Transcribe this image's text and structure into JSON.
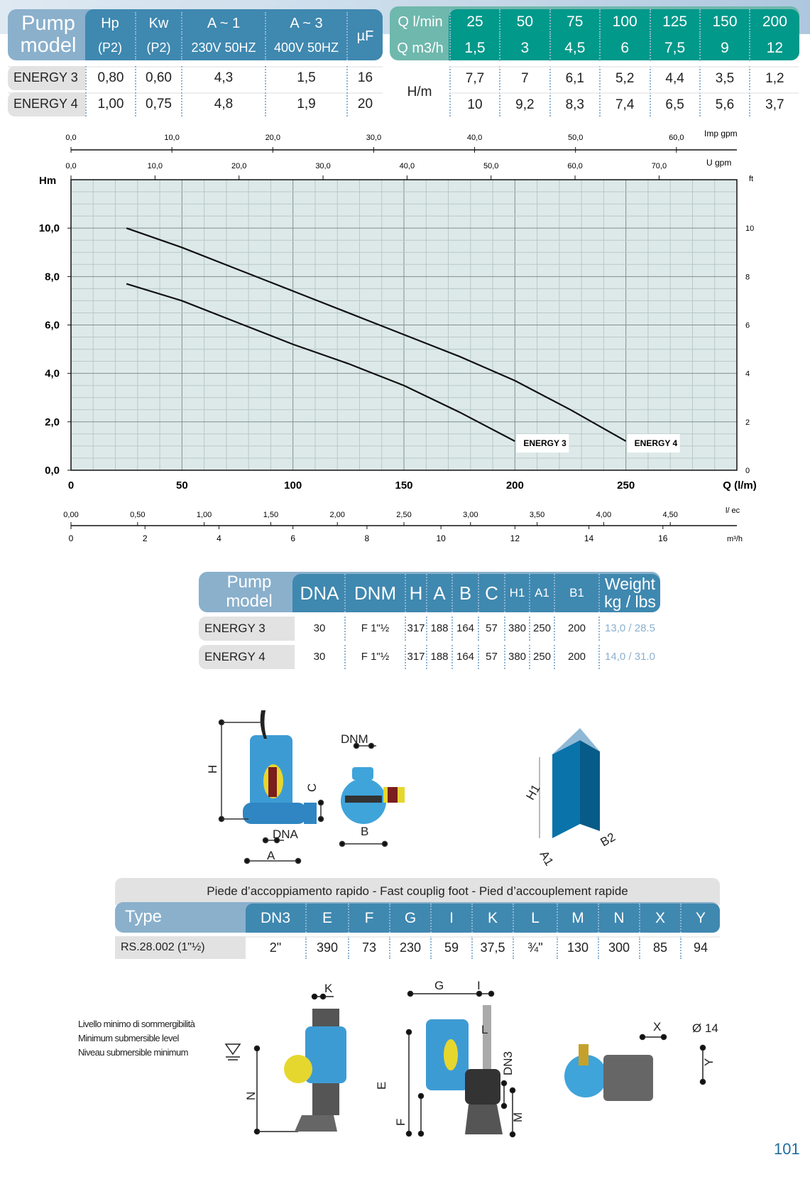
{
  "table1": {
    "header_model": "Pump model",
    "cols": [
      [
        "Hp",
        "(P2)"
      ],
      [
        "Kw",
        "(P2)"
      ],
      [
        "A ~ 1",
        "230V 50HZ"
      ],
      [
        "A ~ 3",
        "400V 50HZ"
      ],
      [
        "µF",
        ""
      ]
    ],
    "rows": [
      {
        "model": "ENERGY 3",
        "vals": [
          "0,80",
          "0,60",
          "4,3",
          "1,5",
          "16"
        ]
      },
      {
        "model": "ENERGY 4",
        "vals": [
          "1,00",
          "0,75",
          "4,8",
          "1,9",
          "20"
        ]
      }
    ]
  },
  "table2": {
    "q_lmin_label": "Q l/min",
    "q_m3h_label": "Q m3/h",
    "hm_label": "H/m",
    "q_lmin": [
      "25",
      "50",
      "75",
      "100",
      "125",
      "150",
      "200"
    ],
    "q_m3h": [
      "1,5",
      "3",
      "4,5",
      "6",
      "7,5",
      "9",
      "12"
    ],
    "rows": [
      [
        "7,7",
        "7",
        "6,1",
        "5,2",
        "4,4",
        "3,5",
        "1,2"
      ],
      [
        "10",
        "9,2",
        "8,3",
        "7,4",
        "6,5",
        "5,6",
        "3,7"
      ]
    ]
  },
  "chart_data": {
    "type": "line",
    "ylabel": "Hm",
    "xlabel": "Q (l/m)",
    "xlim": [
      0,
      300
    ],
    "ylim": [
      0,
      12
    ],
    "x_ticks": [
      "0",
      "50",
      "100",
      "150",
      "200",
      "250"
    ],
    "y_ticks": [
      "0,0",
      "2,0",
      "4,0",
      "6,0",
      "8,0",
      "10,0"
    ],
    "ft_label": "ft",
    "ft_ticks": [
      "0",
      "2",
      "4",
      "6",
      "8",
      "10"
    ],
    "imp_gpm": {
      "label": "Imp gpm",
      "ticks": [
        "0,0",
        "10,0",
        "20,0",
        "30,0",
        "40,0",
        "50,0",
        "60,0"
      ]
    },
    "us_gpm": {
      "label": "U  gpm",
      "ticks": [
        "0,0",
        "10,0",
        "20,0",
        "30,0",
        "40,0",
        "50,0",
        "60,0",
        "70,0"
      ]
    },
    "lsec": {
      "label": "l/ ec",
      "ticks": [
        "0,00",
        "0,50",
        "1,00",
        "1,50",
        "2,00",
        "2,50",
        "3,00",
        "3,50",
        "4,00",
        "4,50"
      ]
    },
    "m3h": {
      "label": "m³/h",
      "ticks": [
        "0",
        "2",
        "4",
        "6",
        "8",
        "10",
        "12",
        "14",
        "16"
      ]
    },
    "grid": true,
    "series": [
      {
        "name": "ENERGY 3",
        "x": [
          25,
          50,
          75,
          100,
          125,
          150,
          175,
          200
        ],
        "y": [
          7.7,
          7,
          6.1,
          5.2,
          4.4,
          3.5,
          2.4,
          1.2
        ]
      },
      {
        "name": "ENERGY 4",
        "x": [
          25,
          50,
          75,
          100,
          125,
          150,
          175,
          200,
          225,
          250
        ],
        "y": [
          10,
          9.2,
          8.3,
          7.4,
          6.5,
          5.6,
          4.7,
          3.7,
          2.5,
          1.2
        ]
      }
    ]
  },
  "table3": {
    "header_model": "Pump model",
    "cols": [
      "DNA",
      "DNM",
      "H",
      "A",
      "B",
      "C",
      "H1",
      "A1",
      "B1",
      "Weight kg / lbs"
    ],
    "rows": [
      {
        "model": "ENERGY 3",
        "vals": [
          "30",
          "F 1\"½",
          "317",
          "188",
          "164",
          "57",
          "380",
          "250",
          "200",
          "13,0 / 28.5"
        ]
      },
      {
        "model": "ENERGY 4",
        "vals": [
          "30",
          "F 1\"½",
          "317",
          "188",
          "164",
          "57",
          "380",
          "250",
          "200",
          "14,0 / 31.0"
        ]
      }
    ]
  },
  "drawing1": {
    "labels": [
      "H",
      "C",
      "DNA",
      "A",
      "DNM",
      "B",
      "H1",
      "A1",
      "B2"
    ]
  },
  "table4": {
    "title": "Piede d’accoppiamento rapido - Fast couplig foot - Pied d’accouplement rapide",
    "header_type": "Type",
    "cols": [
      "DN3",
      "E",
      "F",
      "G",
      "I",
      "K",
      "L",
      "M",
      "N",
      "X",
      "Y"
    ],
    "row": {
      "type": "RS.28.002 (1\"½)",
      "vals": [
        "2\"",
        "390",
        "73",
        "230",
        "59",
        "37,5",
        "¾\"",
        "130",
        "300",
        "85",
        "94"
      ]
    }
  },
  "drawing2": {
    "level_text": [
      "Livello minimo di sommergibilità",
      "Minimum submersible level",
      "Niveau submersible minimum"
    ],
    "labels": [
      "K",
      "N",
      "G",
      "I",
      "L",
      "E",
      "DN3",
      "F",
      "M",
      "X",
      "Ø 14",
      "Y"
    ]
  },
  "page_number": "101"
}
